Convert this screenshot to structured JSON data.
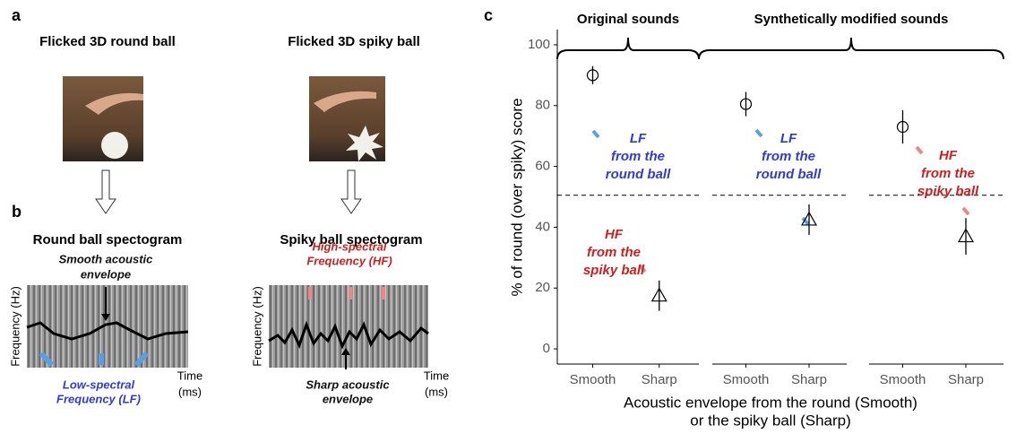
{
  "figure_a": {
    "label": "a",
    "titles": [
      "Flicked 3D round ball",
      "Flicked 3D spiky ball"
    ]
  },
  "figure_b": {
    "label": "b",
    "spectrograms": [
      {
        "title": "Round ball spectogram",
        "ylabel": "Frequency (Hz)",
        "xlabel": [
          "Time",
          "(ms)"
        ],
        "annotations": [
          {
            "lines": [
              "Smooth acoustic",
              "envelope"
            ],
            "color": "#111111"
          },
          {
            "lines": [
              "Low-spectral",
              "Frequency (LF)"
            ],
            "color": "#2f3bd6"
          }
        ]
      },
      {
        "title": "Spiky ball spectogram",
        "ylabel": "Frequency (Hz)",
        "xlabel": [
          "Time",
          "(ms)"
        ],
        "annotations": [
          {
            "lines": [
              "High-spectral",
              "Frequency (HF)"
            ],
            "color": "#cc1f1f"
          },
          {
            "lines": [
              "Sharp acoustic",
              "envelope"
            ],
            "color": "#111111"
          }
        ]
      }
    ]
  },
  "chart_data": {
    "type": "errorbar",
    "label": "c",
    "ylabel": "% of round (over spiky) score",
    "xlabel": [
      "Acoustic envelope from the round (Smooth)",
      "or the spiky ball (Sharp)"
    ],
    "ylim": [
      -5,
      105
    ],
    "yticks": [
      0,
      20,
      40,
      60,
      80,
      100
    ],
    "reference_line": 50.5,
    "markers": [
      "circle",
      "triangle"
    ],
    "groups": [
      {
        "label": "Original sounds",
        "facets": [
          {
            "categories": [
              "Smooth",
              "Sharp"
            ],
            "values": [
              90,
              17.5
            ],
            "errors": [
              3,
              5
            ],
            "annotations": [
              {
                "lines": [
                  "LF",
                  "from the",
                  "round ball"
                ],
                "color": "#2f3bd6"
              },
              {
                "lines": [
                  "HF",
                  "from the",
                  "spiky ball"
                ],
                "color": "#cc1f1f"
              }
            ]
          }
        ]
      },
      {
        "label": "Synthetically modified sounds",
        "facets": [
          {
            "categories": [
              "Smooth",
              "Sharp"
            ],
            "values": [
              80.5,
              42.5
            ],
            "errors": [
              4,
              5
            ],
            "annotations": [
              {
                "lines": [
                  "LF",
                  "from the",
                  "round ball"
                ],
                "color": "#2f3bd6"
              }
            ]
          },
          {
            "categories": [
              "Smooth",
              "Sharp"
            ],
            "values": [
              73,
              37
            ],
            "errors": [
              5.5,
              6
            ],
            "annotations": [
              {
                "lines": [
                  "HF",
                  "from the",
                  "spiky ball"
                ],
                "color": "#cc1f1f"
              }
            ]
          }
        ]
      }
    ]
  }
}
